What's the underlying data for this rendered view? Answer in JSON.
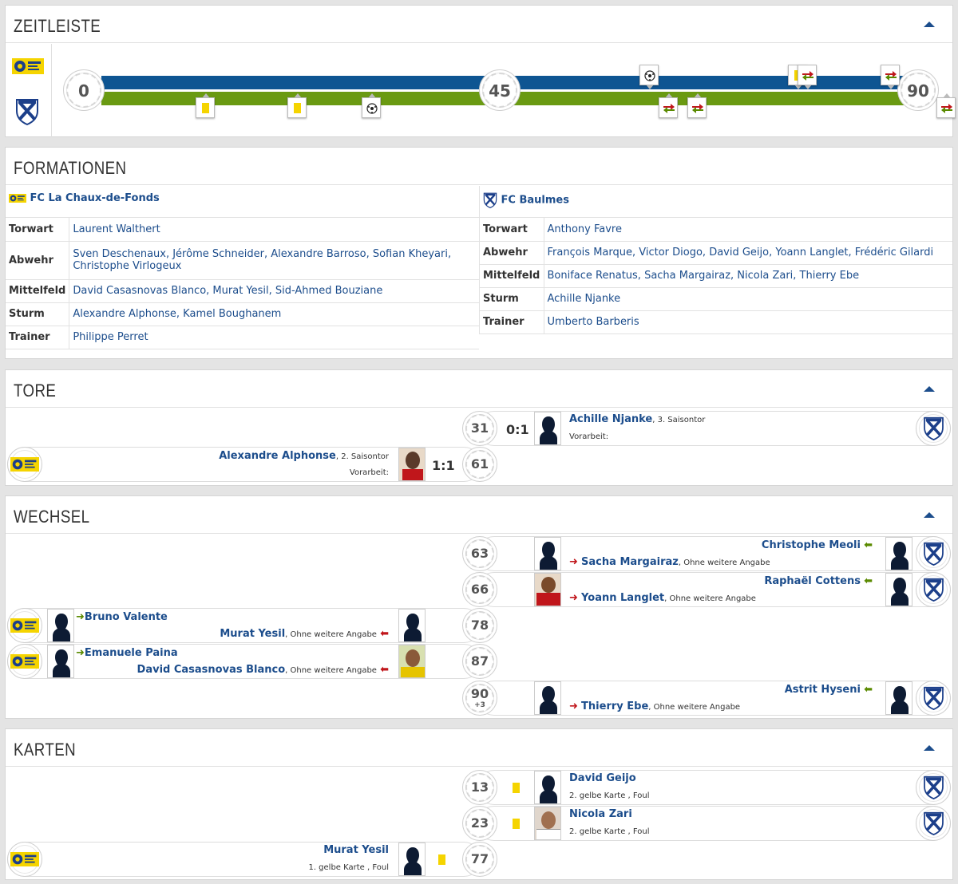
{
  "timeline": {
    "title": "ZEITLEISTE",
    "start": "0",
    "half": "45",
    "end": "90",
    "home_color": "#0e5592",
    "away_color": "#6a9a12"
  },
  "formations": {
    "title": "FORMATIONEN",
    "home": {
      "team": "FC La Chaux-de-Fonds",
      "rows": [
        {
          "label": "Torwart",
          "value": "Laurent Walthert"
        },
        {
          "label": "Abwehr",
          "value": "Sven Deschenaux, Jérôme Schneider, Alexandre Barroso, Sofian Kheyari, Christophe Virlogeux"
        },
        {
          "label": "Mittelfeld",
          "value": "David Casasnovas Blanco, Murat Yesil, Sid-Ahmed Bouziane"
        },
        {
          "label": "Sturm",
          "value": "Alexandre Alphonse, Kamel Boughanem"
        },
        {
          "label": "Trainer",
          "value": "Philippe Perret"
        }
      ]
    },
    "away": {
      "team": "FC Baulmes",
      "rows": [
        {
          "label": "Torwart",
          "value": "Anthony Favre"
        },
        {
          "label": "Abwehr",
          "value": "François Marque, Victor Diogo, David Geijo, Yoann Langlet, Frédéric Gilardi"
        },
        {
          "label": "Mittelfeld",
          "value": "Boniface Renatus, Sacha Margairaz, Nicola Zari, Thierry Ebe"
        },
        {
          "label": "Sturm",
          "value": "Achille Njanke"
        },
        {
          "label": "Trainer",
          "value": "Umberto Barberis"
        }
      ]
    }
  },
  "goals": {
    "title": "TORE",
    "assist_label": "Vorarbeit:",
    "items": [
      {
        "minute": "31",
        "score": "0:1",
        "player": "Achille Njanke",
        "detail": ", 3. Saisontor"
      },
      {
        "minute": "61",
        "score": "1:1",
        "player": "Alexandre Alphonse",
        "detail": ", 2. Saisontor"
      }
    ]
  },
  "subs": {
    "title": "WECHSEL",
    "items": [
      {
        "minute": "63",
        "in": "Christophe Meoli",
        "out": "Sacha Margairaz",
        "note": ", Ohne weitere Angabe"
      },
      {
        "minute": "66",
        "in": "Raphaël Cottens",
        "out": "Yoann Langlet",
        "note": ", Ohne weitere Angabe"
      },
      {
        "minute": "78",
        "in": "Bruno Valente",
        "out": "Murat Yesil",
        "note": ", Ohne weitere Angabe"
      },
      {
        "minute": "87",
        "in": "Emanuele Paina",
        "out": "David Casasnovas Blanco",
        "note": ", Ohne weitere Angabe"
      },
      {
        "minute": "90",
        "extra": "+3",
        "in": "Astrit Hyseni",
        "out": "Thierry Ebe",
        "note": ", Ohne weitere Angabe"
      }
    ]
  },
  "cards": {
    "title": "KARTEN",
    "items": [
      {
        "minute": "13",
        "player": "David Geijo",
        "detail": "2. gelbe Karte , Foul"
      },
      {
        "minute": "23",
        "player": "Nicola Zari",
        "detail": "2. gelbe Karte , Foul"
      },
      {
        "minute": "77",
        "player": "Murat Yesil",
        "detail": "1. gelbe Karte , Foul"
      }
    ]
  },
  "colors": {
    "link": "#1c4d8c",
    "yellow_card": "#f5d400",
    "sub_in": "#5a8a00",
    "sub_out": "#c0161b"
  }
}
